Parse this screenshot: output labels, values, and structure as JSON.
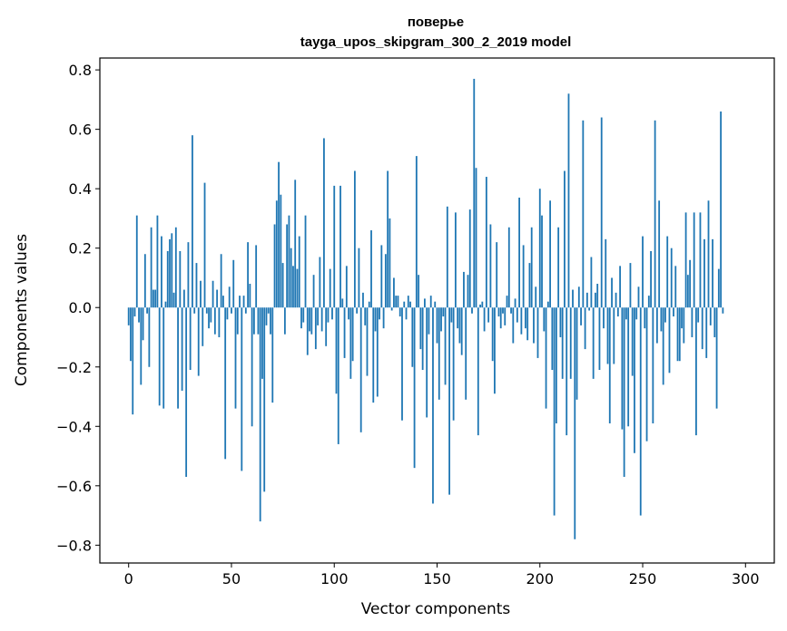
{
  "chart_data": {
    "type": "bar",
    "title_line1": "поверье",
    "title_line2": "tayga_upos_skipgram_300_2_2019 model",
    "xlabel": "Vector components",
    "ylabel": "Components values",
    "xlim": [
      -14,
      314
    ],
    "ylim": [
      -0.86,
      0.84
    ],
    "xticks": [
      0,
      50,
      100,
      150,
      200,
      250,
      300
    ],
    "xtick_labels": [
      "0",
      "50",
      "100",
      "150",
      "200",
      "250",
      "300"
    ],
    "yticks": [
      -0.8,
      -0.6,
      -0.4,
      -0.2,
      0.0,
      0.2,
      0.4,
      0.6,
      0.8
    ],
    "ytick_labels": [
      "−0.8",
      "−0.6",
      "−0.4",
      "−0.2",
      "0.0",
      "0.2",
      "0.4",
      "0.6",
      "0.8"
    ],
    "grid": false,
    "bar_color": "#1f77b4",
    "values": [
      -0.06,
      -0.18,
      -0.36,
      -0.03,
      0.31,
      -0.05,
      -0.26,
      -0.11,
      0.18,
      -0.02,
      -0.2,
      0.27,
      0.06,
      0.06,
      0.31,
      -0.33,
      0.24,
      -0.34,
      0.02,
      0.19,
      0.23,
      0.25,
      0.05,
      0.27,
      -0.34,
      0.19,
      -0.28,
      0.06,
      -0.57,
      0.22,
      -0.21,
      0.58,
      -0.02,
      0.15,
      -0.23,
      0.09,
      -0.13,
      0.42,
      -0.02,
      -0.07,
      -0.05,
      0.09,
      -0.09,
      0.06,
      -0.1,
      0.18,
      0.04,
      -0.51,
      -0.04,
      0.07,
      -0.02,
      0.16,
      -0.34,
      -0.09,
      0.04,
      -0.55,
      0.04,
      -0.02,
      0.22,
      0.08,
      -0.4,
      -0.09,
      0.21,
      -0.09,
      -0.72,
      -0.24,
      -0.62,
      -0.06,
      -0.02,
      -0.09,
      -0.32,
      0.28,
      0.36,
      0.49,
      0.38,
      0.15,
      -0.09,
      0.28,
      0.31,
      0.2,
      0.14,
      0.43,
      0.13,
      0.24,
      -0.07,
      -0.05,
      0.31,
      -0.16,
      -0.08,
      -0.09,
      0.11,
      -0.14,
      -0.06,
      0.17,
      -0.08,
      0.57,
      -0.13,
      -0.05,
      0.13,
      -0.04,
      0.41,
      -0.29,
      -0.46,
      0.41,
      0.03,
      -0.17,
      0.14,
      -0.04,
      -0.24,
      -0.18,
      0.46,
      -0.02,
      0.2,
      -0.42,
      0.05,
      -0.06,
      -0.23,
      0.02,
      0.26,
      -0.32,
      -0.08,
      -0.3,
      -0.04,
      0.21,
      -0.07,
      0.18,
      0.46,
      0.3,
      -0.01,
      0.1,
      0.04,
      0.04,
      -0.03,
      -0.38,
      0.02,
      -0.04,
      0.04,
      0.02,
      -0.2,
      -0.54,
      0.51,
      0.11,
      -0.14,
      -0.21,
      0.03,
      -0.37,
      -0.09,
      0.04,
      -0.66,
      0.02,
      -0.12,
      -0.31,
      -0.08,
      -0.03,
      -0.26,
      0.34,
      -0.63,
      -0.05,
      -0.38,
      0.32,
      -0.07,
      -0.12,
      -0.16,
      0.12,
      -0.31,
      0.11,
      0.33,
      -0.02,
      0.77,
      0.47,
      -0.43,
      0.01,
      0.02,
      -0.08,
      0.44,
      -0.05,
      0.28,
      -0.18,
      -0.29,
      0.22,
      -0.03,
      -0.07,
      -0.02,
      -0.06,
      0.04,
      0.27,
      -0.02,
      -0.12,
      0.03,
      -0.05,
      0.37,
      -0.09,
      0.21,
      -0.07,
      -0.11,
      0.15,
      0.27,
      -0.12,
      0.07,
      -0.17,
      0.4,
      0.31,
      -0.08,
      -0.34,
      0.02,
      0.36,
      -0.21,
      -0.7,
      -0.39,
      0.27,
      -0.1,
      -0.24,
      0.46,
      -0.43,
      0.72,
      -0.24,
      0.06,
      -0.78,
      -0.31,
      0.07,
      -0.06,
      0.63,
      -0.14,
      0.05,
      -0.01,
      0.17,
      -0.24,
      0.05,
      0.08,
      -0.21,
      0.64,
      -0.07,
      0.23,
      -0.19,
      -0.39,
      0.1,
      -0.19,
      0.05,
      -0.03,
      0.14,
      -0.41,
      -0.57,
      -0.04,
      -0.4,
      0.15,
      -0.23,
      -0.49,
      -0.04,
      0.07,
      -0.7,
      0.24,
      -0.07,
      -0.45,
      0.04,
      0.19,
      -0.39,
      0.63,
      -0.12,
      0.36,
      -0.08,
      -0.26,
      -0.05,
      0.24,
      -0.22,
      0.2,
      -0.03,
      0.14,
      -0.18,
      -0.18,
      -0.07,
      -0.12,
      0.32,
      0.11,
      0.16,
      -0.1,
      0.32,
      -0.43,
      -0.05,
      0.32,
      -0.14,
      0.23,
      -0.17,
      0.36,
      -0.06,
      0.23,
      -0.1,
      -0.34,
      0.13,
      0.66,
      -0.02
    ]
  }
}
